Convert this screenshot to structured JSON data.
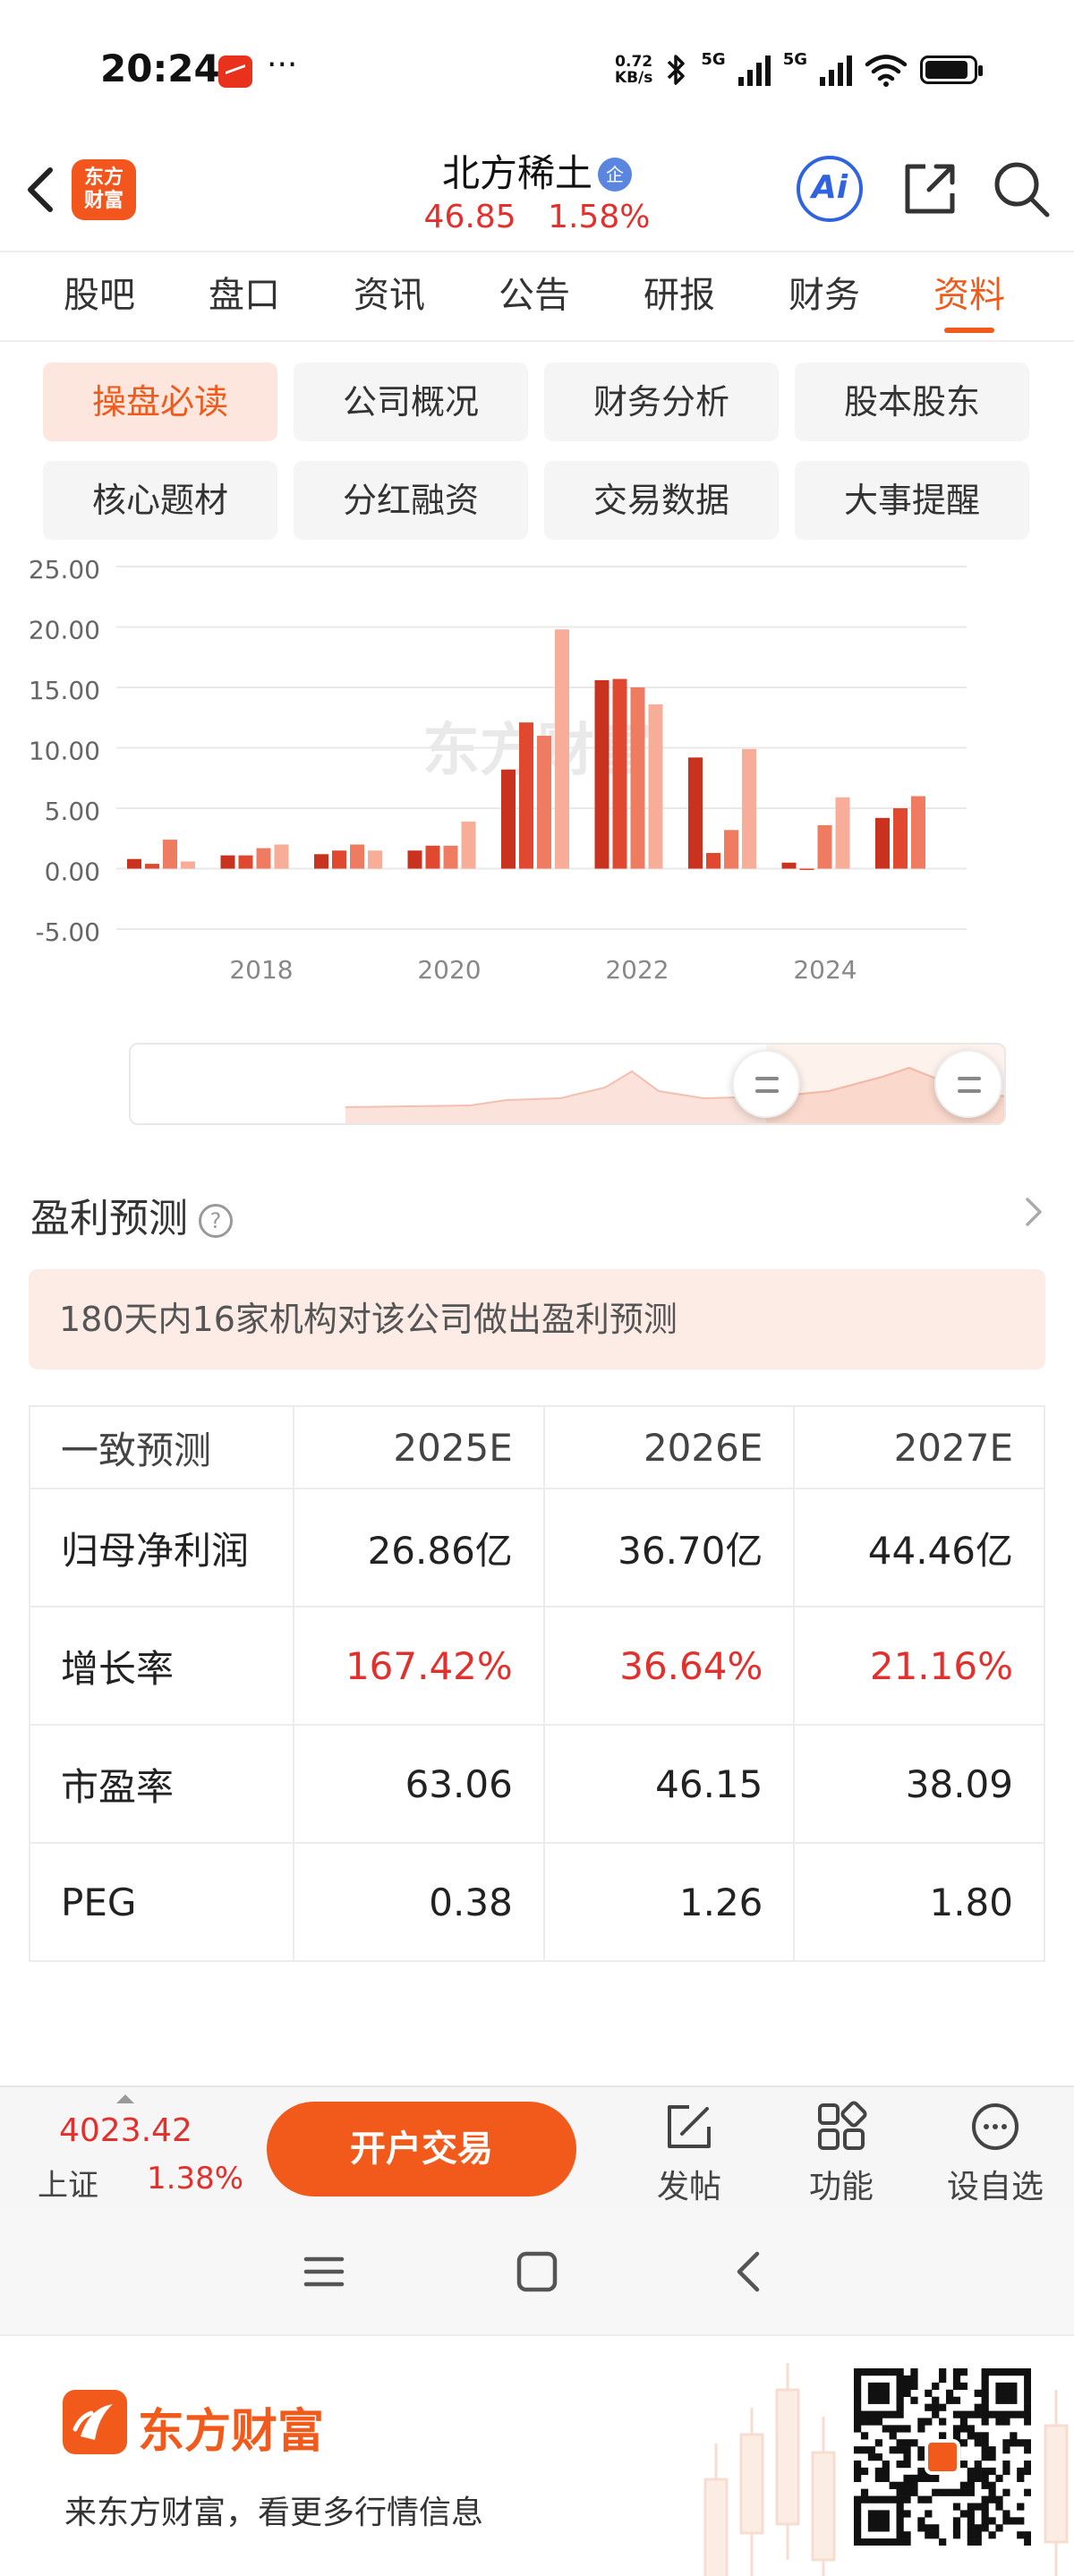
{
  "status_bar": {
    "time": "20:24",
    "dots": "···",
    "net_speed_value": "0.72",
    "net_speed_unit": "KB/s",
    "sig1": "5G",
    "sig2": "5G"
  },
  "header": {
    "logo_line1": "东方",
    "logo_line2": "财富",
    "stock_name": "北方稀土",
    "badge": "企",
    "price": "46.85",
    "change_pct": "1.58%",
    "ai_label": "Ai"
  },
  "tabs": [
    {
      "label": "股吧"
    },
    {
      "label": "盘口"
    },
    {
      "label": "资讯"
    },
    {
      "label": "公告"
    },
    {
      "label": "研报"
    },
    {
      "label": "财务"
    },
    {
      "label": "资料"
    }
  ],
  "subnav": [
    {
      "label": "操盘必读"
    },
    {
      "label": "公司概况"
    },
    {
      "label": "财务分析"
    },
    {
      "label": "股本股东"
    },
    {
      "label": "核心题材"
    },
    {
      "label": "分红融资"
    },
    {
      "label": "交易数据"
    },
    {
      "label": "大事提醒"
    }
  ],
  "chart_data": {
    "type": "bar",
    "y_tick_labels": [
      "25.00",
      "20.00",
      "15.00",
      "10.00",
      "5.00",
      "0.00",
      "-5.00"
    ],
    "x_tick_labels": [
      "2018",
      "2020",
      "2022",
      "2024"
    ],
    "ylim": [
      -5,
      25
    ],
    "watermark": "东方财富",
    "bar_colors": [
      "#c8321e",
      "#e0492f",
      "#ef7b61",
      "#f7ad98"
    ],
    "values": [
      [
        0.8,
        0.4,
        2.4,
        0.6
      ],
      [
        1.1,
        1.1,
        1.7,
        2.0
      ],
      [
        1.2,
        1.5,
        2.0,
        1.5
      ],
      [
        1.5,
        1.9,
        1.9,
        3.9
      ],
      [
        8.2,
        12.1,
        11.0,
        19.8
      ],
      [
        15.6,
        15.7,
        15.0,
        13.6
      ],
      [
        9.2,
        1.3,
        3.2,
        9.9
      ],
      [
        0.5,
        -0.1,
        3.6,
        5.9
      ],
      [
        4.2,
        5.0,
        6.0,
        null
      ]
    ]
  },
  "forecast": {
    "title": "盈利预测",
    "help": "?",
    "notice": "180天内16家机构对该公司做出盈利预测",
    "columns": [
      "一致预测",
      "2025E",
      "2026E",
      "2027E"
    ],
    "rows": [
      {
        "label": "归母净利润",
        "v1": "26.86亿",
        "v2": "36.70亿",
        "v3": "44.46亿",
        "red": false
      },
      {
        "label": "增长率",
        "v1": "167.42%",
        "v2": "36.64%",
        "v3": "21.16%",
        "red": true
      },
      {
        "label": "市盈率",
        "v1": "63.06",
        "v2": "46.15",
        "v3": "38.09",
        "red": false
      },
      {
        "label": "PEG",
        "v1": "0.38",
        "v2": "1.26",
        "v3": "1.80",
        "red": false
      }
    ]
  },
  "toolbar": {
    "index_value": "4023.42",
    "index_name": "上证",
    "index_change": "1.38%",
    "trade_label": "开户交易",
    "post_label": "发帖",
    "func_label": "功能",
    "watch_label": "设自选"
  },
  "footer": {
    "brand": "东方财富",
    "slogan": "来东方财富，看更多行情信息"
  }
}
